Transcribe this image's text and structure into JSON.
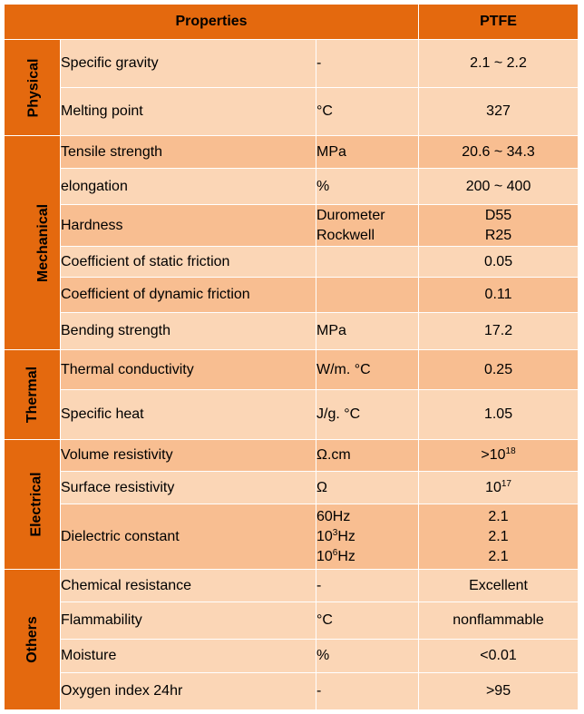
{
  "header": {
    "properties": "Properties",
    "material": "PTFE"
  },
  "groups": {
    "physical": "Physical",
    "mechanical": "Mechanical",
    "thermal": "Thermal",
    "electrical": "Electrical",
    "others": "Others"
  },
  "rows": {
    "specific_gravity": {
      "name": "Specific gravity",
      "unit": "-",
      "value": "2.1 ~ 2.2"
    },
    "melting_point": {
      "name": "Melting point",
      "unit": "°C",
      "value": "327"
    },
    "tensile_strength": {
      "name": "Tensile strength",
      "unit": "MPa",
      "value": "20.6 ~ 34.3"
    },
    "elongation": {
      "name": "elongation",
      "unit": "%",
      "value": "200 ~ 400"
    },
    "hardness": {
      "name": "Hardness",
      "unit1": "Durometer",
      "unit2": "Rockwell",
      "value1": "D55",
      "value2": "R25"
    },
    "static_friction": {
      "name": "Coefficient of static friction",
      "unit": "",
      "value": "0.05"
    },
    "dynamic_friction": {
      "name": "Coefficient of dynamic friction",
      "unit": "",
      "value": "0.11"
    },
    "bending_strength": {
      "name": "Bending strength",
      "unit": "MPa",
      "value": "17.2"
    },
    "thermal_conductivity": {
      "name": "Thermal conductivity",
      "unit": "W/m. °C",
      "value": "0.25"
    },
    "specific_heat": {
      "name": "Specific heat",
      "unit": "J/g. °C",
      "value": "1.05"
    },
    "volume_resistivity": {
      "name": "Volume resistivity",
      "unit": "Ω.cm",
      "value_base": ">10",
      "value_exp": "18"
    },
    "surface_resistivity": {
      "name": "Surface resistivity",
      "unit": "Ω",
      "value_base": "10",
      "value_exp": "17"
    },
    "dielectric_constant": {
      "name": "Dielectric constant",
      "unit1": "60Hz",
      "unit2_base": "10",
      "unit2_exp": "3",
      "unit2_suffix": "Hz",
      "unit3_base": "10",
      "unit3_exp": "6",
      "unit3_suffix": "Hz",
      "value1": "2.1",
      "value2": "2.1",
      "value3": "2.1"
    },
    "chemical_resistance": {
      "name": "Chemical resistance",
      "unit": "-",
      "value": "Excellent"
    },
    "flammability": {
      "name": "Flammability",
      "unit": "°C",
      "value": "nonflammable"
    },
    "moisture": {
      "name": "Moisture",
      "unit": "%",
      "value": "<0.01"
    },
    "oxygen_index": {
      "name": "Oxygen index 24hr",
      "unit": "-",
      "value": ">95"
    }
  }
}
